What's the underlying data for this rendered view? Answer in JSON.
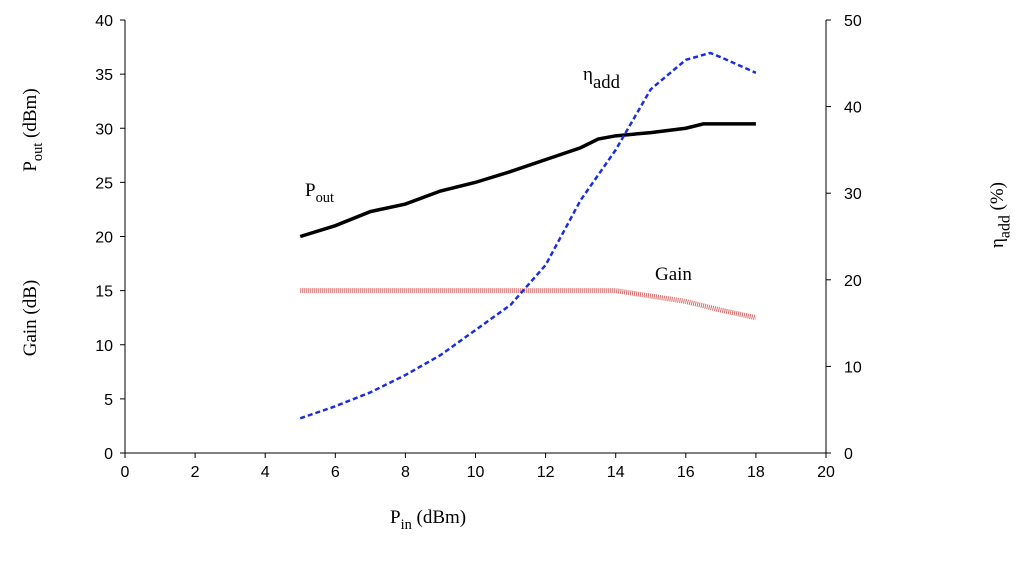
{
  "chart_data": {
    "type": "line",
    "x_label": {
      "text": "P",
      "sub": "in",
      "unit": " (dBm)"
    },
    "y_label": {
      "text": "P",
      "sub": "out",
      "unit": " (dBm)"
    },
    "y_label_2": "Gain (dB)",
    "y2_label": {
      "text": "η",
      "sub": "add",
      "unit": " (%)"
    },
    "xlim": [
      0,
      20
    ],
    "xticks": [
      0,
      2,
      4,
      6,
      8,
      10,
      12,
      14,
      16,
      18,
      20
    ],
    "ylim": [
      0,
      40
    ],
    "yticks": [
      0,
      5,
      10,
      15,
      20,
      25,
      30,
      35,
      40
    ],
    "y2lim": [
      0,
      50
    ],
    "y2ticks": [
      0,
      10,
      20,
      30,
      40,
      50
    ],
    "series": [
      {
        "name": "P",
        "subscript": "out",
        "color": "#000000",
        "style": "solid",
        "x": [
          5,
          6,
          7,
          8,
          9,
          10,
          11,
          12,
          13,
          13.5,
          14,
          15,
          16,
          16.5,
          17,
          18
        ],
        "values": [
          20,
          21,
          22.3,
          23,
          24.2,
          25,
          26,
          27.1,
          28.2,
          29,
          29.3,
          29.6,
          30,
          30.4,
          30.4,
          30.4
        ]
      },
      {
        "name": "Gain",
        "color": "#d46a6a",
        "style": "hatched",
        "x": [
          5,
          14,
          15,
          16,
          17,
          18
        ],
        "values": [
          15,
          15,
          14.5,
          14,
          13.2,
          12.5
        ]
      },
      {
        "name": "η",
        "subscript": "add",
        "color": "#1a2ee0",
        "style": "dashed",
        "axis": "y2",
        "x": [
          5,
          6,
          7,
          8,
          9,
          10,
          11,
          12,
          13,
          14,
          15,
          16,
          16.7,
          17,
          18
        ],
        "values": [
          4,
          5.4,
          7,
          9,
          11.3,
          14.2,
          17.1,
          21.7,
          29.2,
          35,
          42,
          45.4,
          46.2,
          45.7,
          43.9
        ]
      }
    ]
  }
}
